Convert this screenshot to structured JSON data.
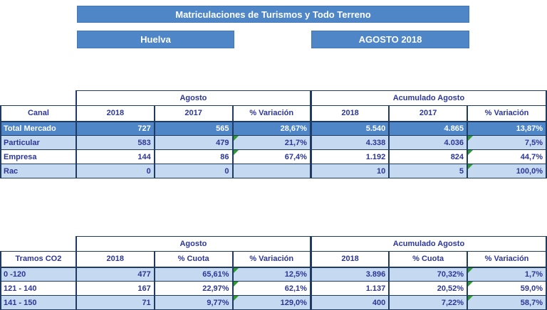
{
  "header": {
    "title": "Matriculaciones de Turismos y Todo Terreno",
    "region": "Huelva",
    "period": "AGOSTO 2018"
  },
  "colors": {
    "accent_blue": "#4E86C8",
    "row_light_blue": "#C5D9F1",
    "border_navy": "#1F3B62",
    "text_blue": "#2B3698",
    "flag_green": "#2E9B2E"
  },
  "tables": [
    {
      "corner_label": "Canal",
      "group_headers": [
        "Agosto",
        "Acumulado Agosto"
      ],
      "column_headers": [
        "2018",
        "2017",
        "% Variación",
        "2018",
        "2017",
        "% Variación"
      ],
      "rows": [
        {
          "label": "Total Mercado",
          "emphasis": true,
          "flags": [],
          "values": [
            "727",
            "565",
            "28,67%",
            "5.540",
            "4.865",
            "13,87%"
          ]
        },
        {
          "label": "Particular",
          "emphasis": false,
          "flags": [
            2,
            5
          ],
          "values": [
            "583",
            "479",
            "21,7%",
            "4.338",
            "4.036",
            "7,5%"
          ]
        },
        {
          "label": "Empresa",
          "emphasis": false,
          "flags": [
            2,
            5
          ],
          "values": [
            "144",
            "86",
            "67,4%",
            "1.192",
            "824",
            "44,7%"
          ]
        },
        {
          "label": "Rac",
          "emphasis": false,
          "flags": [
            5
          ],
          "values": [
            "0",
            "0",
            "",
            "10",
            "5",
            "100,0%"
          ]
        }
      ]
    },
    {
      "corner_label": "Tramos CO2",
      "group_headers": [
        "Agosto",
        "Acumulado Agosto"
      ],
      "column_headers": [
        "2018",
        "% Cuota",
        "% Variación",
        "2018",
        "% Cuota",
        "% Variación"
      ],
      "rows": [
        {
          "label": "0 -120",
          "emphasis": false,
          "flags": [
            2,
            5
          ],
          "values": [
            "477",
            "65,61%",
            "12,5%",
            "3.896",
            "70,32%",
            "1,7%"
          ]
        },
        {
          "label": "121 - 140",
          "emphasis": false,
          "flags": [
            2,
            5
          ],
          "values": [
            "167",
            "22,97%",
            "62,1%",
            "1.137",
            "20,52%",
            "59,0%"
          ]
        },
        {
          "label": "141 - 150",
          "emphasis": false,
          "flags": [
            2,
            5
          ],
          "values": [
            "71",
            "9,77%",
            "129,0%",
            "400",
            "7,22%",
            "58,7%"
          ]
        }
      ]
    }
  ]
}
